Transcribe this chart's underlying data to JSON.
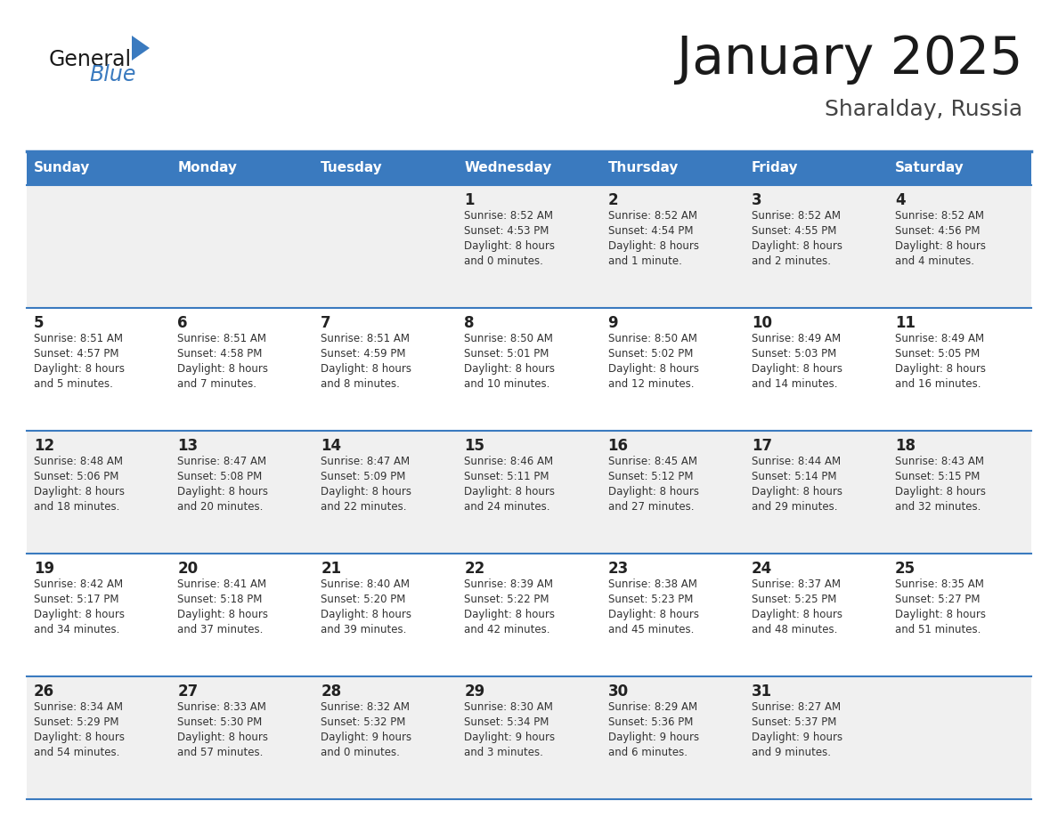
{
  "title": "January 2025",
  "subtitle": "Sharalday, Russia",
  "header_color": "#3a7abf",
  "header_text_color": "#ffffff",
  "cell_bg_even": "#f0f0f0",
  "cell_bg_odd": "#ffffff",
  "border_color": "#3a7abf",
  "day_names": [
    "Sunday",
    "Monday",
    "Tuesday",
    "Wednesday",
    "Thursday",
    "Friday",
    "Saturday"
  ],
  "title_color": "#1a1a1a",
  "subtitle_color": "#444444",
  "number_color": "#222222",
  "text_color": "#333333",
  "logo_general_color": "#1a1a1a",
  "logo_blue_color": "#3a7abf",
  "days": [
    {
      "day": 1,
      "col": 3,
      "row": 0,
      "sunrise": "8:52 AM",
      "sunset": "4:53 PM",
      "daylight": "8 hours and 0 minutes."
    },
    {
      "day": 2,
      "col": 4,
      "row": 0,
      "sunrise": "8:52 AM",
      "sunset": "4:54 PM",
      "daylight": "8 hours and 1 minute."
    },
    {
      "day": 3,
      "col": 5,
      "row": 0,
      "sunrise": "8:52 AM",
      "sunset": "4:55 PM",
      "daylight": "8 hours and 2 minutes."
    },
    {
      "day": 4,
      "col": 6,
      "row": 0,
      "sunrise": "8:52 AM",
      "sunset": "4:56 PM",
      "daylight": "8 hours and 4 minutes."
    },
    {
      "day": 5,
      "col": 0,
      "row": 1,
      "sunrise": "8:51 AM",
      "sunset": "4:57 PM",
      "daylight": "8 hours and 5 minutes."
    },
    {
      "day": 6,
      "col": 1,
      "row": 1,
      "sunrise": "8:51 AM",
      "sunset": "4:58 PM",
      "daylight": "8 hours and 7 minutes."
    },
    {
      "day": 7,
      "col": 2,
      "row": 1,
      "sunrise": "8:51 AM",
      "sunset": "4:59 PM",
      "daylight": "8 hours and 8 minutes."
    },
    {
      "day": 8,
      "col": 3,
      "row": 1,
      "sunrise": "8:50 AM",
      "sunset": "5:01 PM",
      "daylight": "8 hours and 10 minutes."
    },
    {
      "day": 9,
      "col": 4,
      "row": 1,
      "sunrise": "8:50 AM",
      "sunset": "5:02 PM",
      "daylight": "8 hours and 12 minutes."
    },
    {
      "day": 10,
      "col": 5,
      "row": 1,
      "sunrise": "8:49 AM",
      "sunset": "5:03 PM",
      "daylight": "8 hours and 14 minutes."
    },
    {
      "day": 11,
      "col": 6,
      "row": 1,
      "sunrise": "8:49 AM",
      "sunset": "5:05 PM",
      "daylight": "8 hours and 16 minutes."
    },
    {
      "day": 12,
      "col": 0,
      "row": 2,
      "sunrise": "8:48 AM",
      "sunset": "5:06 PM",
      "daylight": "8 hours and 18 minutes."
    },
    {
      "day": 13,
      "col": 1,
      "row": 2,
      "sunrise": "8:47 AM",
      "sunset": "5:08 PM",
      "daylight": "8 hours and 20 minutes."
    },
    {
      "day": 14,
      "col": 2,
      "row": 2,
      "sunrise": "8:47 AM",
      "sunset": "5:09 PM",
      "daylight": "8 hours and 22 minutes."
    },
    {
      "day": 15,
      "col": 3,
      "row": 2,
      "sunrise": "8:46 AM",
      "sunset": "5:11 PM",
      "daylight": "8 hours and 24 minutes."
    },
    {
      "day": 16,
      "col": 4,
      "row": 2,
      "sunrise": "8:45 AM",
      "sunset": "5:12 PM",
      "daylight": "8 hours and 27 minutes."
    },
    {
      "day": 17,
      "col": 5,
      "row": 2,
      "sunrise": "8:44 AM",
      "sunset": "5:14 PM",
      "daylight": "8 hours and 29 minutes."
    },
    {
      "day": 18,
      "col": 6,
      "row": 2,
      "sunrise": "8:43 AM",
      "sunset": "5:15 PM",
      "daylight": "8 hours and 32 minutes."
    },
    {
      "day": 19,
      "col": 0,
      "row": 3,
      "sunrise": "8:42 AM",
      "sunset": "5:17 PM",
      "daylight": "8 hours and 34 minutes."
    },
    {
      "day": 20,
      "col": 1,
      "row": 3,
      "sunrise": "8:41 AM",
      "sunset": "5:18 PM",
      "daylight": "8 hours and 37 minutes."
    },
    {
      "day": 21,
      "col": 2,
      "row": 3,
      "sunrise": "8:40 AM",
      "sunset": "5:20 PM",
      "daylight": "8 hours and 39 minutes."
    },
    {
      "day": 22,
      "col": 3,
      "row": 3,
      "sunrise": "8:39 AM",
      "sunset": "5:22 PM",
      "daylight": "8 hours and 42 minutes."
    },
    {
      "day": 23,
      "col": 4,
      "row": 3,
      "sunrise": "8:38 AM",
      "sunset": "5:23 PM",
      "daylight": "8 hours and 45 minutes."
    },
    {
      "day": 24,
      "col": 5,
      "row": 3,
      "sunrise": "8:37 AM",
      "sunset": "5:25 PM",
      "daylight": "8 hours and 48 minutes."
    },
    {
      "day": 25,
      "col": 6,
      "row": 3,
      "sunrise": "8:35 AM",
      "sunset": "5:27 PM",
      "daylight": "8 hours and 51 minutes."
    },
    {
      "day": 26,
      "col": 0,
      "row": 4,
      "sunrise": "8:34 AM",
      "sunset": "5:29 PM",
      "daylight": "8 hours and 54 minutes."
    },
    {
      "day": 27,
      "col": 1,
      "row": 4,
      "sunrise": "8:33 AM",
      "sunset": "5:30 PM",
      "daylight": "8 hours and 57 minutes."
    },
    {
      "day": 28,
      "col": 2,
      "row": 4,
      "sunrise": "8:32 AM",
      "sunset": "5:32 PM",
      "daylight": "9 hours and 0 minutes."
    },
    {
      "day": 29,
      "col": 3,
      "row": 4,
      "sunrise": "8:30 AM",
      "sunset": "5:34 PM",
      "daylight": "9 hours and 3 minutes."
    },
    {
      "day": 30,
      "col": 4,
      "row": 4,
      "sunrise": "8:29 AM",
      "sunset": "5:36 PM",
      "daylight": "9 hours and 6 minutes."
    },
    {
      "day": 31,
      "col": 5,
      "row": 4,
      "sunrise": "8:27 AM",
      "sunset": "5:37 PM",
      "daylight": "9 hours and 9 minutes."
    }
  ]
}
